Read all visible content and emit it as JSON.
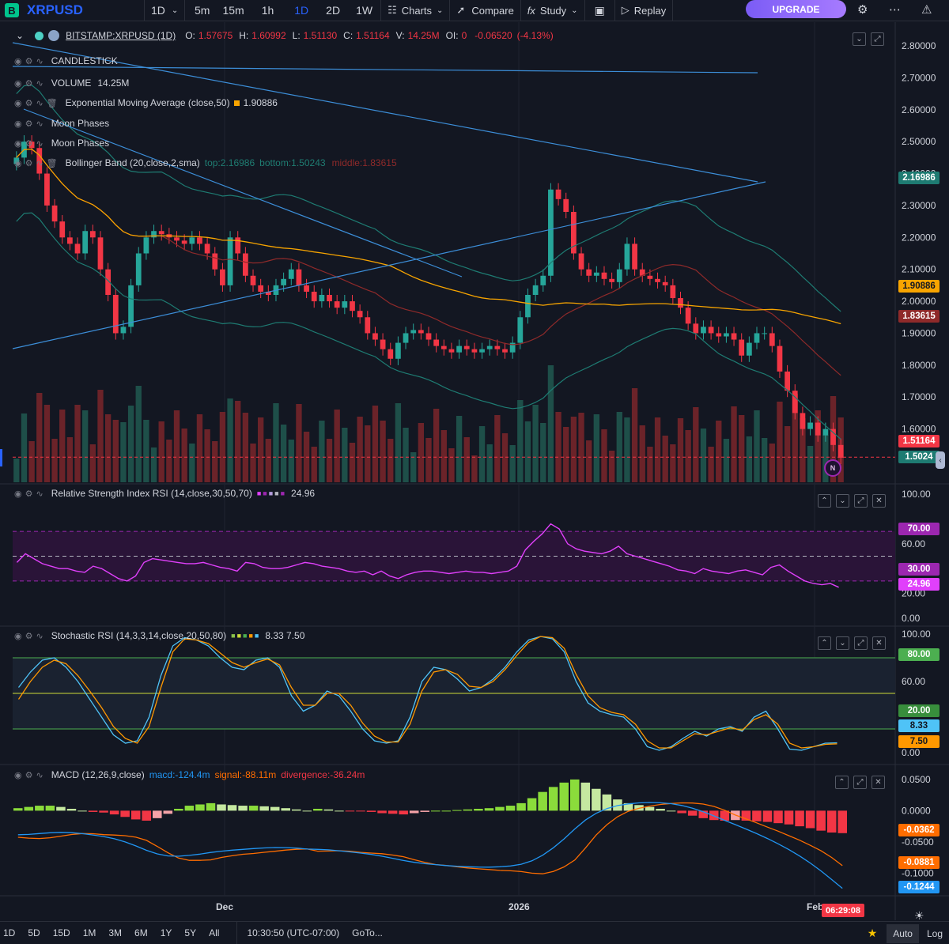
{
  "toolbar": {
    "logo": "B",
    "symbol": "XRPUSD",
    "interval": "1D",
    "intervals": [
      "5m",
      "15m",
      "1h",
      "1D",
      "2D",
      "1W"
    ],
    "charts": "Charts",
    "compare": "Compare",
    "study": "Study",
    "replay": "Replay",
    "upgrade": "UPGRADE"
  },
  "legend": {
    "symbol": "BITSTAMP:XRPUSD (1D)",
    "o_lbl": "O:",
    "o": "1.57675",
    "h_lbl": "H:",
    "h": "1.60992",
    "l_lbl": "L:",
    "l": "1.51130",
    "c_lbl": "C:",
    "c": "1.51164",
    "v_lbl": "V:",
    "v": "14.25M",
    "oi_lbl": "OI:",
    "oi": "0",
    "change": "-0.06520",
    "change_pct": "(-4.13%)",
    "candlestick": "CANDLESTICK",
    "volume": "VOLUME",
    "volume_val": "14.25M",
    "ema": "Exponential Moving Average (close,50)",
    "ema_val": "1.90886",
    "moon1": "Moon Phases",
    "moon2": "Moon Phases",
    "bb": "Bollinger Band (20,close,2,sma)",
    "bb_top": "top:2.16986",
    "bb_bottom": "bottom:1.50243",
    "bb_middle": "middle:1.83615"
  },
  "rsi_legend": {
    "title": "Relative Strength Index RSI (14,close,30,50,70)",
    "value": "24.96"
  },
  "stoch_legend": {
    "title": "Stochastic RSI (14,3,3,14,close,20,50,80)",
    "value": "8.33 7.50"
  },
  "macd_legend": {
    "title": "MACD (12,26,9,close)",
    "macd": "macd:-124.4m",
    "signal": "signal:-88.11m",
    "divergence": "divergence:-36.24m"
  },
  "price_tags": {
    "bb_top": "2.16986",
    "ema": "1.90886",
    "bb_mid": "1.83615",
    "last": "1.51164",
    "bb_bot": "1.5024",
    "rsi_70": "70.00",
    "rsi_30": "30.00",
    "rsi_val": "24.96",
    "st_80": "80.00",
    "st_20": "20.00",
    "st_k": "8.33",
    "st_d": "7.50",
    "macd_div": "-0.0362",
    "macd_sig": "-0.0881",
    "macd_val": "-0.1244"
  },
  "time_axis": {
    "labels": [
      "Dec",
      "2026",
      "Feb"
    ],
    "countdown": "06:29:08"
  },
  "bottom": {
    "ranges": [
      "1D",
      "5D",
      "15D",
      "1M",
      "3M",
      "6M",
      "1Y",
      "5Y",
      "All"
    ],
    "clock": "10:30:50 (UTC-07:00)",
    "goto": "GoTo...",
    "auto": "Auto",
    "log": "Log"
  },
  "colors": {
    "up": "#26a69a",
    "down": "#f23645",
    "ema": "#f7a400",
    "bb": "#26a69a",
    "rsi": "#e040fb",
    "stoch_k": "#4fc3f7",
    "stoch_d": "#ff9800",
    "macd": "#2196f3",
    "signal": "#ff6d00",
    "accent": "#2962ff"
  },
  "icons": {
    "settings": "gear-icon",
    "more": "more-icon",
    "alert": "warning-icon",
    "instagram": "camera-icon"
  },
  "chart_data": [
    {
      "type": "candlestick",
      "title": "BITSTAMP:XRPUSD (1D)",
      "x_labels": [
        "Dec",
        "2026",
        "Feb"
      ],
      "ylim": [
        1.5,
        2.8
      ],
      "y_ticks": [
        2.8,
        2.7,
        2.6,
        2.5,
        2.4,
        2.3,
        2.2,
        2.1,
        2.0,
        1.9,
        1.8,
        1.7,
        1.6
      ],
      "last_price": 1.51164,
      "closes": [
        2.45,
        2.5,
        2.48,
        2.4,
        2.3,
        2.25,
        2.2,
        2.18,
        2.15,
        2.22,
        2.2,
        2.1,
        2.02,
        1.9,
        1.92,
        2.05,
        2.15,
        2.2,
        2.22,
        2.21,
        2.2,
        2.19,
        2.18,
        2.2,
        2.18,
        2.15,
        2.1,
        2.05,
        2.2,
        2.15,
        2.08,
        2.05,
        2.03,
        2.02,
        2.05,
        2.07,
        2.1,
        2.05,
        2.03,
        2.0,
        2.02,
        2.0,
        1.98,
        2.0,
        1.97,
        1.95,
        1.9,
        1.88,
        1.85,
        1.82,
        1.87,
        1.9,
        1.91,
        1.9,
        1.88,
        1.86,
        1.85,
        1.84,
        1.86,
        1.85,
        1.84,
        1.85,
        1.86,
        1.85,
        1.84,
        1.87,
        1.95,
        2.02,
        2.05,
        2.08,
        2.35,
        2.32,
        2.28,
        2.15,
        2.1,
        2.08,
        2.09,
        2.07,
        2.06,
        2.1,
        2.18,
        2.1,
        2.08,
        2.07,
        2.06,
        2.05,
        2.01,
        1.98,
        1.93,
        1.9,
        1.92,
        1.9,
        1.89,
        1.9,
        1.88,
        1.83,
        1.87,
        1.9,
        1.9,
        1.86,
        1.78,
        1.72,
        1.65,
        1.6,
        1.62,
        1.58,
        1.6,
        1.55,
        1.51
      ],
      "ema50_last": 1.90886,
      "bollinger": {
        "top": 2.16986,
        "middle": 1.83615,
        "bottom": 1.50243
      },
      "volume_last": "14.25M"
    },
    {
      "type": "line",
      "title": "Relative Strength Index RSI (14,close,30,50,70)",
      "ylim": [
        0,
        100
      ],
      "y_ticks": [
        100,
        60,
        20,
        0
      ],
      "bands": [
        30,
        50,
        70
      ],
      "values": [
        45,
        52,
        48,
        44,
        42,
        40,
        40,
        38,
        37,
        42,
        40,
        36,
        32,
        30,
        34,
        45,
        48,
        47,
        46,
        45,
        44,
        44,
        45,
        43,
        41,
        40,
        38,
        45,
        44,
        41,
        40,
        40,
        41,
        43,
        45,
        44,
        42,
        41,
        40,
        38,
        37,
        38,
        35,
        38,
        34,
        32,
        35,
        37,
        38,
        38,
        37,
        36,
        37,
        38,
        37,
        37,
        36,
        37,
        38,
        42,
        55,
        62,
        68,
        76,
        72,
        60,
        56,
        54,
        53,
        52,
        54,
        58,
        52,
        50,
        48,
        46,
        44,
        42,
        39,
        38,
        36,
        40,
        38,
        37,
        36,
        38,
        39,
        37,
        35,
        41,
        43,
        38,
        34,
        30,
        28,
        27,
        28,
        25
      ],
      "last": 24.96
    },
    {
      "type": "line",
      "title": "Stochastic RSI (14,3,3,14,close,20,50,80)",
      "ylim": [
        0,
        100
      ],
      "y_ticks": [
        100,
        60,
        0
      ],
      "bands": [
        20,
        50,
        80
      ],
      "series": [
        {
          "values": [
            55,
            68,
            78,
            80,
            72,
            60,
            45,
            30,
            15,
            8,
            10,
            30,
            65,
            90,
            97,
            95,
            90,
            80,
            72,
            70,
            78,
            80,
            72,
            48,
            35,
            40,
            52,
            48,
            35,
            20,
            10,
            8,
            10,
            30,
            60,
            72,
            70,
            62,
            52,
            55,
            62,
            72,
            85,
            95,
            98,
            96,
            85,
            60,
            42,
            35,
            32,
            30,
            20,
            5,
            2,
            5,
            12,
            18,
            14,
            20,
            22,
            18,
            30,
            35,
            20,
            3,
            2,
            5,
            8,
            8.33
          ]
        },
        {
          "values": [
            45,
            60,
            72,
            78,
            75,
            65,
            52,
            38,
            22,
            12,
            8,
            22,
            55,
            85,
            96,
            95,
            92,
            84,
            76,
            72,
            76,
            79,
            74,
            55,
            40,
            40,
            50,
            50,
            40,
            25,
            14,
            9,
            9,
            24,
            52,
            68,
            70,
            66,
            56,
            55,
            60,
            70,
            82,
            93,
            98,
            97,
            88,
            66,
            48,
            38,
            34,
            32,
            24,
            10,
            4,
            4,
            10,
            16,
            15,
            18,
            21,
            19,
            28,
            32,
            24,
            8,
            4,
            5,
            7,
            7.5
          ]
        }
      ],
      "last": [
        8.33,
        7.5
      ]
    },
    {
      "type": "bar",
      "title": "MACD (12,26,9,close)",
      "ylim": [
        -0.13,
        0.06
      ],
      "y_ticks": [
        0.05,
        0.0,
        -0.05,
        -0.1
      ],
      "macd_last": -0.1244,
      "signal_last": -0.0881,
      "divergence_last": -0.0362,
      "divergence": [
        0.004,
        0.006,
        0.008,
        0.008,
        0.006,
        0.003,
        0.0,
        -0.002,
        -0.003,
        -0.006,
        -0.01,
        -0.014,
        -0.016,
        -0.012,
        -0.005,
        0.003,
        0.008,
        0.01,
        0.012,
        0.01,
        0.009,
        0.008,
        0.008,
        0.007,
        0.006,
        0.004,
        0.002,
        0.0,
        0.003,
        0.002,
        0.0,
        -0.001,
        -0.001,
        -0.002,
        -0.004,
        -0.005,
        -0.006,
        -0.004,
        -0.002,
        0.0,
        0.0,
        0.001,
        0.002,
        0.003,
        0.004,
        0.006,
        0.008,
        0.012,
        0.02,
        0.03,
        0.038,
        0.045,
        0.05,
        0.045,
        0.035,
        0.026,
        0.018,
        0.012,
        0.009,
        0.006,
        0.003,
        0.0,
        -0.004,
        -0.008,
        -0.012,
        -0.015,
        -0.016,
        -0.015,
        -0.016,
        -0.017,
        -0.018,
        -0.02,
        -0.022,
        -0.025,
        -0.028,
        -0.032,
        -0.035,
        -0.036
      ]
    }
  ]
}
